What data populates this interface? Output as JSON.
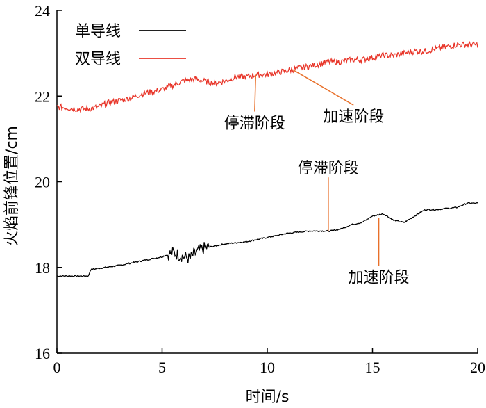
{
  "chart_data": {
    "type": "line",
    "xlabel": "时间/s",
    "ylabel": "火焰前锋位置/cm",
    "xlim": [
      0,
      20
    ],
    "ylim": [
      16,
      24
    ],
    "xticks": [
      0,
      5,
      10,
      15,
      20
    ],
    "yticks": [
      16,
      18,
      20,
      22,
      24
    ],
    "grid": false,
    "legend_position": "top-left",
    "series": [
      {
        "name": "单导线",
        "color": "#000000",
        "x": [
          0,
          1.5,
          1.6,
          3.0,
          4.0,
          5.0,
          5.5,
          6.3,
          6.5,
          7.0,
          7.5,
          8.0,
          9.0,
          10.0,
          11.0,
          12.0,
          12.5,
          12.8,
          13.0,
          13.5,
          14.0,
          14.5,
          15.0,
          15.5,
          15.7,
          16.0,
          16.5,
          17.0,
          17.5,
          18.0,
          19.0,
          19.5,
          20.0
        ],
        "values": [
          17.8,
          17.8,
          17.95,
          18.05,
          18.15,
          18.25,
          18.35,
          18.2,
          18.3,
          18.45,
          18.5,
          18.55,
          18.6,
          18.7,
          18.8,
          18.85,
          18.85,
          18.85,
          18.85,
          18.9,
          19.0,
          19.05,
          19.2,
          19.25,
          19.2,
          19.1,
          19.05,
          19.2,
          19.35,
          19.35,
          19.4,
          19.5,
          19.5
        ]
      },
      {
        "name": "双导线",
        "color": "#e8362a",
        "x": [
          0,
          1.0,
          1.5,
          2.0,
          2.5,
          3.0,
          3.5,
          4.0,
          4.5,
          5.0,
          5.5,
          6.0,
          6.5,
          7.0,
          7.5,
          8.0,
          8.5,
          9.0,
          9.5,
          10.0,
          10.5,
          11.0,
          11.5,
          12.0,
          12.5,
          13.0,
          13.5,
          14.0,
          14.5,
          15.0,
          15.5,
          16.0,
          16.5,
          17.0,
          17.5,
          18.0,
          18.5,
          19.0,
          19.5,
          20.0
        ],
        "values": [
          21.75,
          21.7,
          21.7,
          21.75,
          21.85,
          21.9,
          21.95,
          22.05,
          22.1,
          22.15,
          22.25,
          22.35,
          22.4,
          22.35,
          22.3,
          22.35,
          22.45,
          22.45,
          22.5,
          22.5,
          22.55,
          22.6,
          22.65,
          22.7,
          22.75,
          22.8,
          22.8,
          22.85,
          22.85,
          22.9,
          22.95,
          22.95,
          23.0,
          23.05,
          23.05,
          23.1,
          23.15,
          23.2,
          23.2,
          23.2
        ]
      }
    ],
    "annotations": [
      {
        "text": "停滞阶段",
        "series": "双导线",
        "point_x": 9.45,
        "point_y": 22.5,
        "text_x": 9.4,
        "text_y": 21.25
      },
      {
        "text": "加速阶段",
        "series": "双导线",
        "point_x": 11.2,
        "point_y": 22.62,
        "text_x": 14.1,
        "text_y": 21.4
      },
      {
        "text": "停滞阶段",
        "series": "单导线",
        "point_x": 12.9,
        "point_y": 18.85,
        "text_x": 12.9,
        "text_y": 20.2
      },
      {
        "text": "加速阶段",
        "series": "单导线",
        "point_x": 15.3,
        "point_y": 19.15,
        "text_x": 15.3,
        "text_y": 17.65
      }
    ]
  }
}
